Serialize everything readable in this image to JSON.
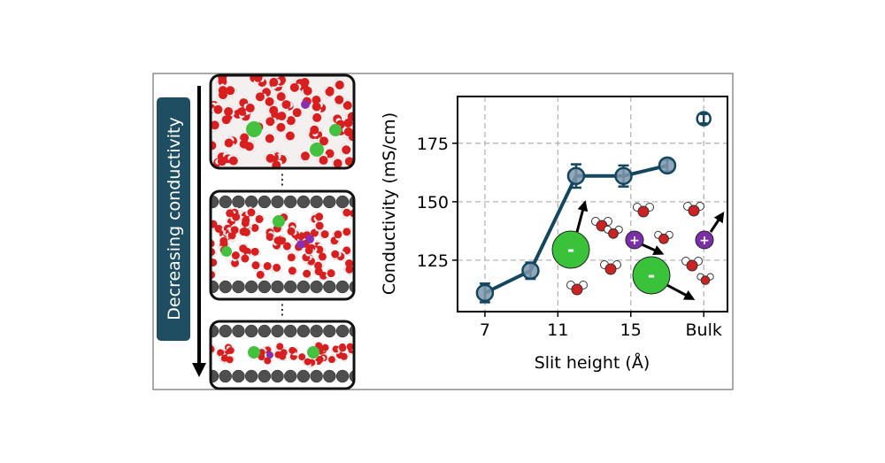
{
  "left_panel": {
    "arrow_label": "Decreasing conductivity",
    "separator_glyph": "⋮",
    "snapshots": [
      {
        "name": "bulk-water-snapshot"
      },
      {
        "name": "wide-slit-snapshot"
      },
      {
        "name": "narrow-slit-snapshot"
      }
    ],
    "colors": {
      "label_box": "#1f4d61",
      "oxygen": "#d81e1e",
      "hydrogen": "#f2f2f2",
      "chloride": "#44c13f",
      "sodium": "#8a2fb0",
      "graphene": "#4f4f4f"
    }
  },
  "chart_data": {
    "type": "line",
    "xlabel": "Slit height (Å)",
    "ylabel": "Conductivity (mS/cm)",
    "x_ticks": [
      {
        "value": 7,
        "label": "7"
      },
      {
        "value": 11,
        "label": "11"
      },
      {
        "value": 15,
        "label": "15"
      },
      {
        "value": 19,
        "label": "Bulk"
      }
    ],
    "y_ticks": [
      125,
      150,
      175
    ],
    "xlim": [
      5.5,
      20.3
    ],
    "ylim": [
      103,
      195
    ],
    "grid": true,
    "series": [
      {
        "x": [
          7,
          9.5,
          12,
          14.6,
          17
        ],
        "y": [
          111,
          120.5,
          161,
          161,
          165.5
        ],
        "err": [
          4,
          3.5,
          5,
          4.5,
          2.5
        ],
        "color": "#14465f"
      }
    ],
    "bulk_point": {
      "x": 19,
      "y": 185.5,
      "err": 2
    },
    "ion_labels": {
      "anion": "-",
      "cation": "+"
    },
    "ion_colors": {
      "anion": "#39c23a",
      "cation": "#7b2fa6"
    }
  }
}
